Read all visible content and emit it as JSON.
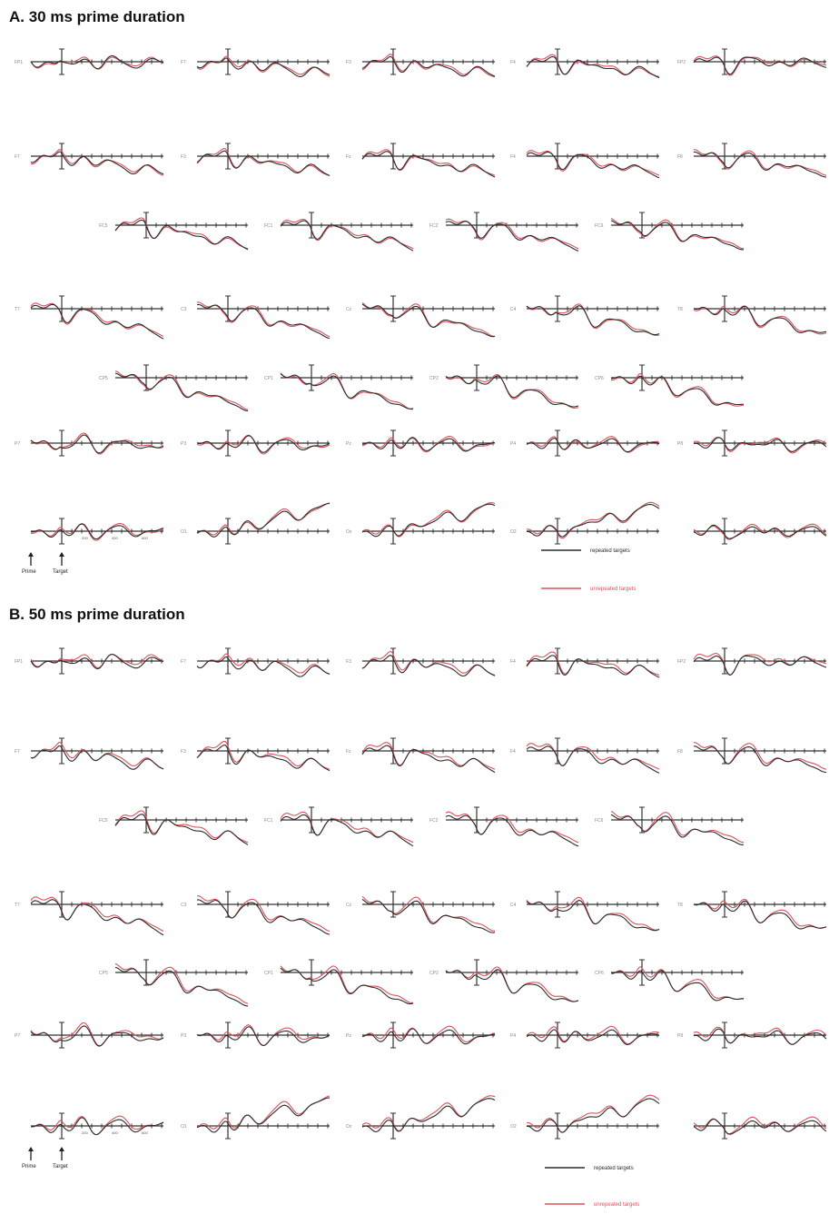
{
  "colors": {
    "repeated": "#2b2b2b",
    "unrepeated": "#d9535a",
    "axis": "#333333"
  },
  "chart_data": [
    {
      "type": "line",
      "title": "A. 30 ms prime duration",
      "panel_key": "A",
      "series": [
        {
          "name": "repeated targets",
          "color": "#2b2b2b"
        },
        {
          "name": "unrepeated targets",
          "color": "#d9535a"
        }
      ],
      "annotations": {
        "prime_arrow": "Prime",
        "target_arrow": "Target"
      }
    },
    {
      "type": "line",
      "title": "B. 50 ms prime duration",
      "panel_key": "B",
      "series": [
        {
          "name": "repeated targets",
          "color": "#2b2b2b"
        },
        {
          "name": "unrepeated targets",
          "color": "#d9535a"
        }
      ],
      "annotations": {
        "prime_arrow": "Prime",
        "target_arrow": "Target"
      }
    }
  ],
  "scale_legend": {
    "time_ticks": [
      "200",
      "400",
      "600"
    ]
  },
  "electrode_rows": [
    [
      "FP1",
      "F7",
      "F3",
      "F4",
      "FP2"
    ],
    [
      "F7",
      "F3",
      "Fz",
      "F4",
      "F8"
    ],
    [
      "FC5",
      "FC1",
      "FC2",
      "FC6"
    ],
    [
      "T7",
      "C3",
      "Cz",
      "C4",
      "T8"
    ],
    [
      "CP5",
      "CP1",
      "CP2",
      "CP6"
    ],
    [
      "P7",
      "P3",
      "Pz",
      "P4",
      "P8"
    ],
    [
      "",
      "O1",
      "Oz",
      "O2",
      ""
    ]
  ]
}
